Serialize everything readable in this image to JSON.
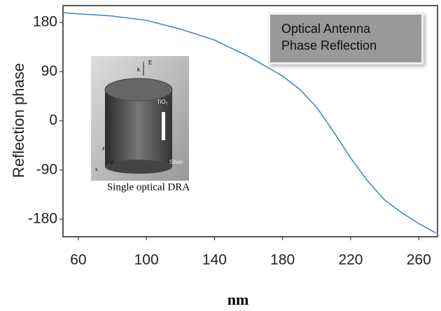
{
  "chart_data": {
    "type": "line",
    "x_label": "nm",
    "y_label": "Reflection phase",
    "x": [
      51,
      60,
      80,
      100,
      120,
      140,
      160,
      180,
      190,
      200,
      210,
      220,
      230,
      240,
      250,
      260,
      270
    ],
    "series": [
      {
        "name": "Optical Antenna Phase Reflection",
        "color": "#3a7fd0",
        "values": [
          198,
          196,
          192,
          184,
          168,
          148,
          118,
          82,
          58,
          25,
          -20,
          -68,
          -110,
          -145,
          -168,
          -188,
          -205
        ]
      }
    ],
    "xlim": [
      51,
      271
    ],
    "ylim": [
      -212,
      211
    ],
    "xticks": [
      60,
      100,
      140,
      180,
      220,
      260
    ],
    "yticks": [
      180,
      90,
      0,
      -90,
      -180
    ],
    "inset": {
      "caption": "Single optical DRA",
      "material_top": "TiO₂",
      "material_bottom": "Silver",
      "wave_vector": "k",
      "field": "E",
      "axes": [
        "x",
        "y",
        "z"
      ]
    }
  }
}
